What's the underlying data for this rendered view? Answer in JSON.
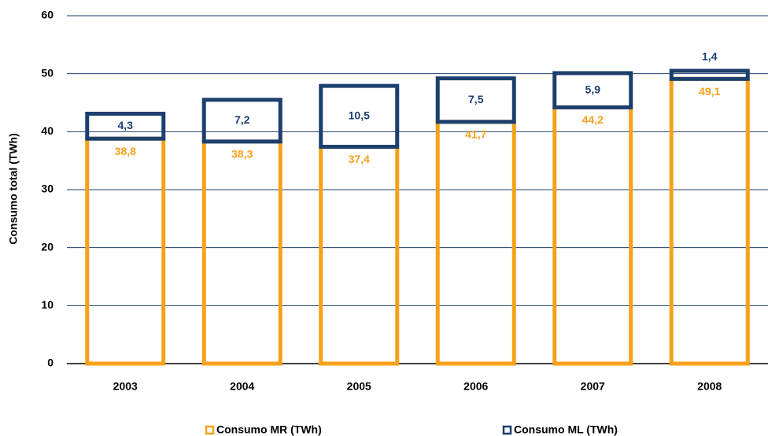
{
  "chart_data": {
    "type": "bar",
    "stacked": true,
    "ylabel": "Consumo total (TWh)",
    "categories": [
      "2003",
      "2004",
      "2005",
      "2006",
      "2007",
      "2008"
    ],
    "series": [
      {
        "name": "Consumo MR (TWh)",
        "color": "#f7a11a",
        "values": [
          38.8,
          38.3,
          37.4,
          41.7,
          44.2,
          49.1
        ],
        "value_labels": [
          "38,8",
          "38,3",
          "37,4",
          "41,7",
          "44,2",
          "49,1"
        ]
      },
      {
        "name": "Consumo ML (TWh)",
        "color": "#1c3f6e",
        "values": [
          4.3,
          7.2,
          10.5,
          7.5,
          5.9,
          1.4
        ],
        "value_labels": [
          "4,3",
          "7,2",
          "10,5",
          "7,5",
          "5,9",
          "1,4"
        ]
      }
    ],
    "ylim": [
      0,
      60
    ],
    "yticks": [
      0,
      10,
      20,
      30,
      40,
      50,
      60
    ],
    "grid": true,
    "legend": "bottom"
  }
}
